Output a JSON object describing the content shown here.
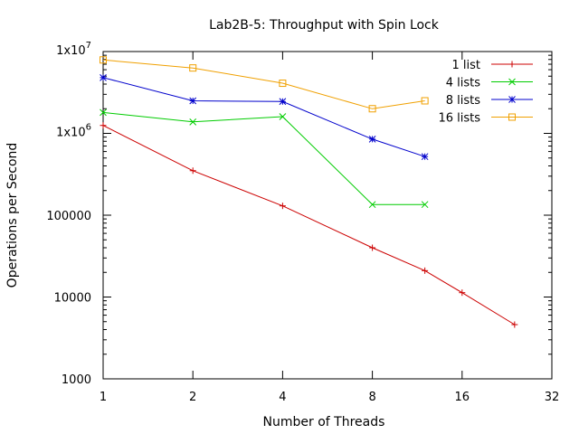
{
  "chart_data": {
    "type": "line",
    "title": "Lab2B-5: Throughput with Spin Lock",
    "xlabel": "Number of Threads",
    "ylabel": "Operations per Second",
    "x_scale": "log2",
    "y_scale": "log10",
    "xlim": [
      1,
      32
    ],
    "ylim": [
      1000,
      10000000
    ],
    "x_ticks": [
      {
        "value": 1,
        "label": "1"
      },
      {
        "value": 2,
        "label": "2"
      },
      {
        "value": 4,
        "label": "4"
      },
      {
        "value": 8,
        "label": "8"
      },
      {
        "value": 16,
        "label": "16"
      },
      {
        "value": 32,
        "label": "32"
      }
    ],
    "y_ticks": [
      {
        "value": 1000,
        "label": "1000"
      },
      {
        "value": 10000,
        "label": "10000"
      },
      {
        "value": 100000,
        "label": "100000"
      },
      {
        "value": 1000000,
        "label": "1x10",
        "exp": "6"
      },
      {
        "value": 10000000,
        "label": "1x10",
        "exp": "7"
      }
    ],
    "grid": false,
    "legend_position": "top-right",
    "series": [
      {
        "name": "1 list",
        "color": "#cc0000",
        "marker": "plus",
        "points": [
          [
            1,
            1250000
          ],
          [
            2,
            350000
          ],
          [
            4,
            130000
          ],
          [
            8,
            40000
          ],
          [
            12,
            21000
          ],
          [
            16,
            11300
          ],
          [
            24,
            4600
          ]
        ]
      },
      {
        "name": "4 lists",
        "color": "#00cc00",
        "marker": "cross",
        "points": [
          [
            1,
            1800000
          ],
          [
            2,
            1380000
          ],
          [
            4,
            1600000
          ],
          [
            8,
            135000
          ],
          [
            12,
            135000
          ]
        ]
      },
      {
        "name": "8 lists",
        "color": "#0000cc",
        "marker": "star",
        "points": [
          [
            1,
            4800000
          ],
          [
            2,
            2500000
          ],
          [
            4,
            2450000
          ],
          [
            8,
            850000
          ],
          [
            12,
            520000
          ]
        ]
      },
      {
        "name": "16 lists",
        "color": "#f0a000",
        "marker": "square",
        "points": [
          [
            1,
            7900000
          ],
          [
            2,
            6300000
          ],
          [
            4,
            4100000
          ],
          [
            8,
            2000000
          ],
          [
            12,
            2500000
          ]
        ]
      }
    ]
  }
}
